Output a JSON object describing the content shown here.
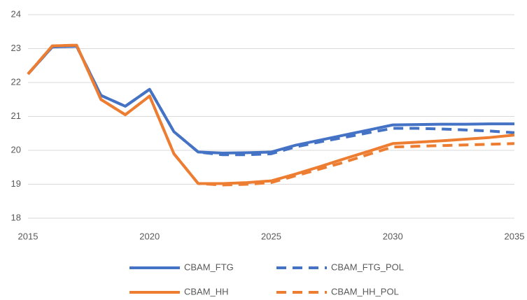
{
  "chart_data": {
    "type": "line",
    "x": [
      2015,
      2016,
      2017,
      2018,
      2019,
      2020,
      2021,
      2022,
      2023,
      2024,
      2025,
      2026,
      2027,
      2028,
      2029,
      2030,
      2031,
      2032,
      2033,
      2034,
      2035
    ],
    "xlim": [
      2015,
      2035
    ],
    "xticks": [
      2015,
      2020,
      2025,
      2030,
      2035
    ],
    "ylim": [
      18,
      24
    ],
    "yticks": [
      18,
      19,
      20,
      21,
      22,
      23,
      24
    ],
    "grid": true,
    "legend": "bottom",
    "series": [
      {
        "name": "CBAM_FTG",
        "color": "#4472c4",
        "dashed": false,
        "values": [
          22.25,
          23.05,
          23.07,
          21.62,
          21.3,
          21.8,
          20.55,
          19.95,
          19.92,
          19.93,
          19.95,
          20.15,
          20.3,
          20.45,
          20.6,
          20.75,
          20.76,
          20.77,
          20.77,
          20.78,
          20.78
        ]
      },
      {
        "name": "CBAM_FTG_POL",
        "color": "#4472c4",
        "dashed": true,
        "values": [
          22.25,
          23.05,
          23.07,
          21.62,
          21.3,
          21.8,
          20.55,
          19.95,
          19.87,
          19.87,
          19.9,
          20.1,
          20.25,
          20.38,
          20.52,
          20.65,
          20.65,
          20.63,
          20.6,
          20.57,
          20.52
        ]
      },
      {
        "name": "CBAM_HH",
        "color": "#ed7d31",
        "dashed": false,
        "values": [
          22.25,
          23.08,
          23.1,
          21.5,
          21.05,
          21.6,
          19.9,
          19.02,
          19.02,
          19.05,
          19.1,
          19.3,
          19.52,
          19.75,
          19.97,
          20.2,
          20.24,
          20.28,
          20.33,
          20.38,
          20.45
        ]
      },
      {
        "name": "CBAM_HH_POL",
        "color": "#ed7d31",
        "dashed": true,
        "values": [
          22.25,
          23.08,
          23.1,
          21.5,
          21.05,
          21.6,
          19.9,
          19.02,
          18.98,
          19.0,
          19.05,
          19.25,
          19.45,
          19.65,
          19.88,
          20.1,
          20.12,
          20.14,
          20.16,
          20.18,
          20.2
        ]
      }
    ]
  }
}
